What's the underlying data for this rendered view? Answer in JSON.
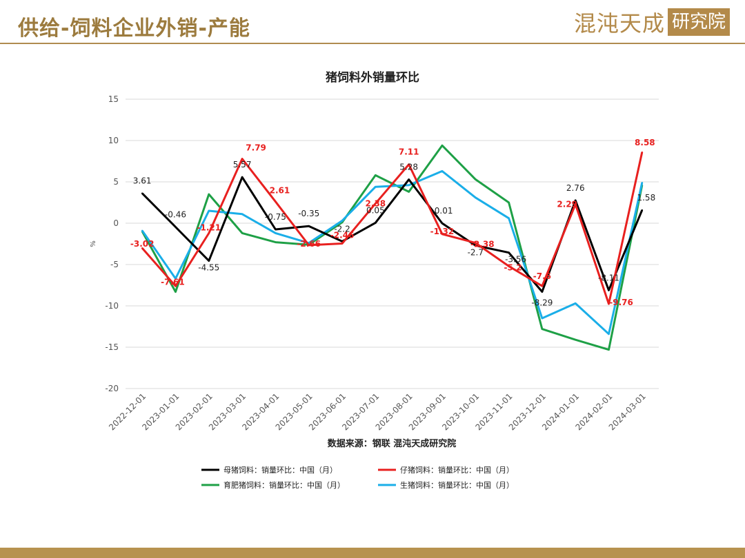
{
  "header": {
    "title": "供给-饲料企业外销-产能",
    "logo_text": "混沌天成",
    "logo_box": "研究院"
  },
  "chart_data": {
    "type": "line",
    "title": "猪饲料外销量环比",
    "ylabel": "%",
    "xlabel": "",
    "ylim": [
      -20,
      15
    ],
    "yticks": [
      15,
      10,
      5,
      0,
      -5,
      -10,
      -15,
      -20
    ],
    "grid": true,
    "legend_position": "bottom",
    "source": "数据来源：钢联 混沌天成研究院",
    "categories": [
      "2022-12-01",
      "2023-01-01",
      "2023-02-01",
      "2023-03-01",
      "2023-04-01",
      "2023-05-01",
      "2023-06-01",
      "2023-07-01",
      "2023-08-01",
      "2023-09-01",
      "2023-10-01",
      "2023-11-01",
      "2023-12-01",
      "2024-01-01",
      "2024-02-01",
      "2024-03-01"
    ],
    "series": [
      {
        "name": "母猪饲料：销量环比：中国（月）",
        "color": "#000000",
        "values": [
          3.61,
          -0.46,
          -4.55,
          5.57,
          -0.75,
          -0.35,
          -2.2,
          0.05,
          5.28,
          -0.01,
          -2.7,
          -3.56,
          -8.29,
          2.76,
          -8.11,
          1.58
        ],
        "labels": [
          "3.61",
          "-0.46",
          "-4.55",
          "5.57",
          "-0.75",
          "-0.35",
          "-2.2",
          "0.05",
          "5.28",
          "-0.01",
          "-2.7",
          "-3.56",
          "-8.29",
          "2.76",
          "-8.11",
          "1.58"
        ]
      },
      {
        "name": "仔猪饲料：销量环比：中国（月）",
        "color": "#e8201f",
        "values": [
          -3.02,
          -7.61,
          -1.21,
          7.79,
          2.61,
          -2.66,
          -2.46,
          2.38,
          7.11,
          -1.32,
          -2.38,
          -5.2,
          -7.6,
          2.29,
          -9.76,
          8.58
        ],
        "labels": [
          "-3.02",
          "-7.61",
          "-1.21",
          "7.79",
          "2.61",
          "-2.66",
          "-2.46",
          "2.38",
          "7.11",
          "-1.32",
          "-2.38",
          "-5.2",
          "-7.6",
          "2.29",
          "-9.76",
          "8.58"
        ]
      },
      {
        "name": "育肥猪饲料：销量环比：中国（月）",
        "color": "#1ea046",
        "values": [
          -1.0,
          -8.3,
          3.5,
          -1.2,
          -2.3,
          -2.6,
          0.1,
          5.8,
          3.8,
          9.4,
          5.3,
          2.5,
          -12.8,
          -14.1,
          -15.3,
          4.6
        ]
      },
      {
        "name": "生猪饲料：销量环比：中国（月）",
        "color": "#1aaee8",
        "values": [
          -0.9,
          -6.7,
          1.5,
          1.1,
          -1.2,
          -2.4,
          0.3,
          4.4,
          4.6,
          6.3,
          3.1,
          0.6,
          -11.5,
          -9.7,
          -13.4,
          4.9
        ]
      }
    ]
  }
}
